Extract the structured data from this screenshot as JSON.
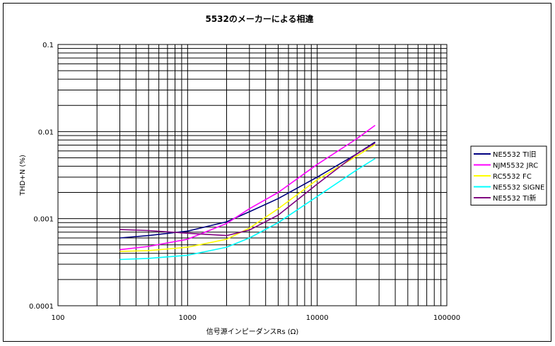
{
  "chart_data": {
    "type": "line",
    "title": "5532のメーカーによる相違",
    "xlabel": "信号源インピーダンスRs (Ω)",
    "ylabel": "THD+N (%)",
    "xscale": "log",
    "yscale": "log",
    "xlim": [
      100,
      100000
    ],
    "ylim": [
      0.0001,
      0.1
    ],
    "x_tick_labels": [
      "100",
      "1000",
      "10000",
      "100000"
    ],
    "y_tick_labels": [
      "0.0001",
      "0.001",
      "0.01",
      "0.1"
    ],
    "grid": true,
    "legend_position": "right",
    "series": [
      {
        "name": "NE5532 TI旧",
        "color": "#000080",
        "x": [
          300,
          500,
          1000,
          2000,
          3000,
          5000,
          10000,
          20000,
          28000
        ],
        "y": [
          0.0006,
          0.00064,
          0.00072,
          0.00092,
          0.0012,
          0.0017,
          0.003,
          0.0055,
          0.0076
        ]
      },
      {
        "name": "NJM5532 JRC",
        "color": "#ff00ff",
        "x": [
          300,
          500,
          1000,
          2000,
          3000,
          5000,
          10000,
          20000,
          28000
        ],
        "y": [
          0.00044,
          0.00048,
          0.00058,
          0.00088,
          0.0013,
          0.002,
          0.0042,
          0.0082,
          0.0118
        ]
      },
      {
        "name": "RC5532 FC",
        "color": "#ffff00",
        "x": [
          300,
          500,
          1000,
          2000,
          3000,
          5000,
          10000,
          20000,
          28000
        ],
        "y": [
          0.00042,
          0.00043,
          0.00047,
          0.00058,
          0.00078,
          0.0013,
          0.0028,
          0.0052,
          0.0071
        ]
      },
      {
        "name": "NE5532 SIGNE",
        "color": "#00ffff",
        "x": [
          300,
          500,
          1000,
          2000,
          3000,
          5000,
          10000,
          20000,
          28000
        ],
        "y": [
          0.00034,
          0.00035,
          0.00038,
          0.00047,
          0.0006,
          0.0009,
          0.0018,
          0.0036,
          0.0049
        ]
      },
      {
        "name": "NE5532 TI新",
        "color": "#800080",
        "x": [
          300,
          500,
          1000,
          2000,
          3000,
          5000,
          10000,
          20000,
          28000
        ],
        "y": [
          0.00075,
          0.00073,
          0.00068,
          0.00064,
          0.00074,
          0.0011,
          0.0025,
          0.0055,
          0.0074
        ]
      }
    ]
  }
}
